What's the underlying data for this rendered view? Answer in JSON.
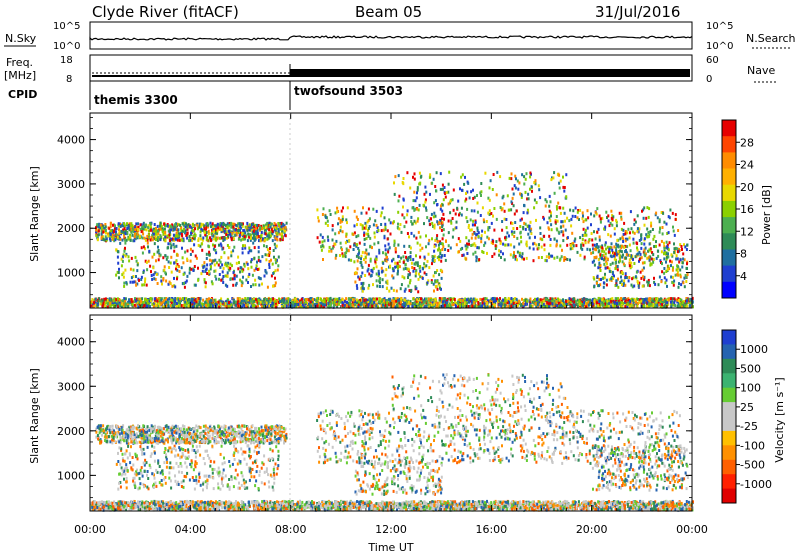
{
  "header": {
    "station": "Clyde River (fitACF)",
    "beam": "Beam 05",
    "date": "31/Jul/2016"
  },
  "sky_panel": {
    "left_label": "N.Sky",
    "right_label": "N.Search",
    "ytick_top": "10^5",
    "ytick_bottom": "10^0"
  },
  "freq_panel": {
    "left_label_1": "Freq.",
    "left_label_2": "[MHz]",
    "right_label": "Nave",
    "left_ticks": [
      "18",
      "8"
    ],
    "right_ticks": [
      "60",
      "0"
    ]
  },
  "cpid": {
    "label": "CPID",
    "segments": [
      {
        "name": "themis 3300",
        "start_hour": 0
      },
      {
        "name": "twofsound 3503",
        "start_hour": 8
      }
    ]
  },
  "chart_data": [
    {
      "type": "heatmap",
      "title": "",
      "ylabel": "Slant Range [km]",
      "xlabel": "",
      "xlim": [
        0,
        24
      ],
      "ylim": [
        200,
        4600
      ],
      "yticks": [
        "1000",
        "2000",
        "3000",
        "4000"
      ],
      "colorbar": {
        "label": "Power [dB]",
        "ticks": [
          "28",
          "24",
          "20",
          "16",
          "12",
          "8",
          "4"
        ],
        "colors": [
          "#e60000",
          "#ff4500",
          "#ff8c00",
          "#ffb000",
          "#e8d800",
          "#8bd000",
          "#4caf50",
          "#2e8b57",
          "#1f6fa0",
          "#1f3fd0",
          "#0000ff"
        ]
      }
    },
    {
      "type": "heatmap",
      "title": "",
      "ylabel": "Slant Range [km]",
      "xlabel": "Time UT",
      "xlim": [
        0,
        24
      ],
      "ylim": [
        200,
        4600
      ],
      "yticks": [
        "1000",
        "2000",
        "3000",
        "4000"
      ],
      "xticks": [
        "00:00",
        "04:00",
        "08:00",
        "12:00",
        "16:00",
        "20:00",
        "00:00"
      ],
      "colorbar": {
        "label": "Velocity [m s⁻¹]",
        "ticks": [
          "1000",
          "500",
          "100",
          "25",
          "-25",
          "-100",
          "-500",
          "-1000"
        ],
        "colors": [
          "#1f3fd0",
          "#2563b0",
          "#2e8b57",
          "#3cb371",
          "#66cc33",
          "#c8c8c8",
          "#c8c8c8",
          "#ffc000",
          "#ff9000",
          "#ff6000",
          "#ff2000",
          "#e00000"
        ]
      }
    }
  ]
}
